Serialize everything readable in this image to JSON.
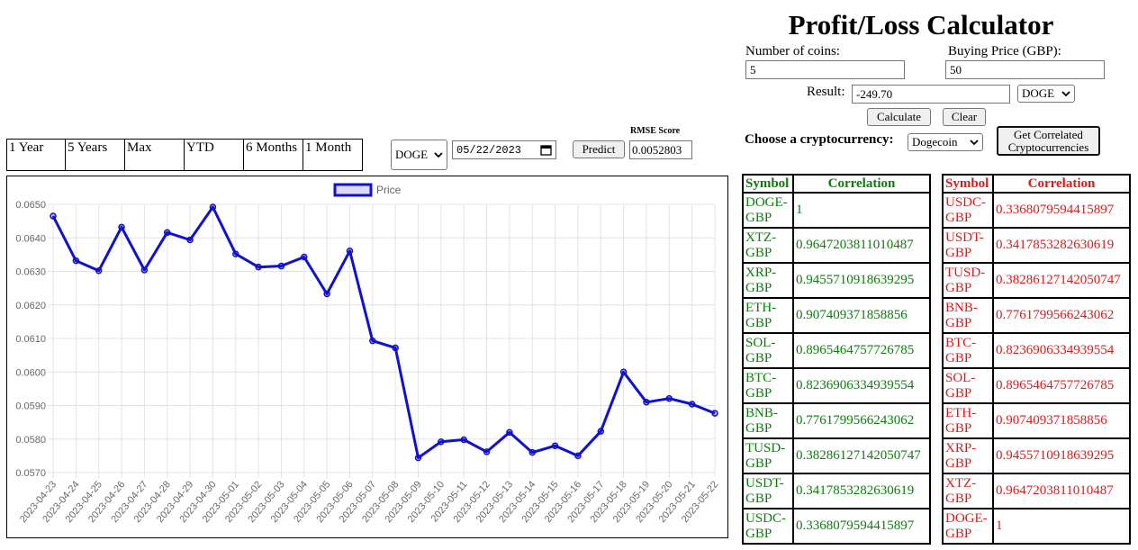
{
  "header": {
    "title": "Profit/Loss Calculator"
  },
  "calculator": {
    "coins_label": "Number of coins:",
    "coins_value": "5",
    "buy_price_label": "Buying Price (GBP):",
    "buy_price_value": "50",
    "result_label": "Result:",
    "result_value": "-249.70",
    "coin_select_value": "DOGE",
    "calculate_label": "Calculate",
    "clear_label": "Clear"
  },
  "crypto_chooser": {
    "label": "Choose a cryptocurrency:",
    "selected": "Dogecoin",
    "correlated_button": "Get Correlated Cryptocurrencies"
  },
  "range_tabs": [
    "1 Year",
    "5 Years",
    "Max",
    "YTD",
    "6 Months",
    "1 Month"
  ],
  "predict_bar": {
    "coin_select_value": "DOGE",
    "date_value": "05/22/2023",
    "predict_label": "Predict",
    "rmse_label": "RMSE Score",
    "rmse_value": "0.0052803"
  },
  "chart_data": {
    "type": "line",
    "series": [
      {
        "name": "Price",
        "color": "#1010d0",
        "values": [
          0.06465,
          0.06332,
          0.06302,
          0.06432,
          0.06304,
          0.06416,
          0.06394,
          0.06492,
          0.06352,
          0.06313,
          0.06316,
          0.06343,
          0.06233,
          0.06361,
          0.06093,
          0.06072,
          0.05744,
          0.05792,
          0.05798,
          0.05762,
          0.0582,
          0.0576,
          0.0578,
          0.0575,
          0.05823,
          0.06,
          0.0591,
          0.05921,
          0.05904,
          0.05877
        ]
      }
    ],
    "categories": [
      "2023-04-23",
      "2023-04-24",
      "2023-04-25",
      "2023-04-26",
      "2023-04-27",
      "2023-04-28",
      "2023-04-29",
      "2023-04-30",
      "2023-05-01",
      "2023-05-02",
      "2023-05-03",
      "2023-05-04",
      "2023-05-05",
      "2023-05-06",
      "2023-05-07",
      "2023-05-08",
      "2023-05-09",
      "2023-05-10",
      "2023-05-11",
      "2023-05-12",
      "2023-05-13",
      "2023-05-14",
      "2023-05-15",
      "2023-05-16",
      "2023-05-17",
      "2023-05-18",
      "2023-05-19",
      "2023-05-20",
      "2023-05-21",
      "2023-05-22"
    ],
    "yticks": [
      "0.0570",
      "0.0580",
      "0.0590",
      "0.0600",
      "0.0610",
      "0.0620",
      "0.0630",
      "0.0640",
      "0.0650"
    ],
    "ylim": [
      0.057,
      0.065
    ],
    "legend_position": "top-center",
    "grid": true
  },
  "positive_table": {
    "headers": [
      "Symbol",
      "Correlation"
    ],
    "rows": [
      [
        "DOGE-GBP",
        "1"
      ],
      [
        "XTZ-GBP",
        "0.9647203811010487"
      ],
      [
        "XRP-GBP",
        "0.9455710918639295"
      ],
      [
        "ETH-GBP",
        "0.907409371858856"
      ],
      [
        "SOL-GBP",
        "0.8965464757726785"
      ],
      [
        "BTC-GBP",
        "0.8236906334939554"
      ],
      [
        "BNB-GBP",
        "0.7761799566243062"
      ],
      [
        "TUSD-GBP",
        "0.38286127142050747"
      ],
      [
        "USDT-GBP",
        "0.3417853282630619"
      ],
      [
        "USDC-GBP",
        "0.3368079594415897"
      ]
    ]
  },
  "negative_table": {
    "headers": [
      "Symbol",
      "Correlation"
    ],
    "rows": [
      [
        "USDC-GBP",
        "0.3368079594415897"
      ],
      [
        "USDT-GBP",
        "0.3417853282630619"
      ],
      [
        "TUSD-GBP",
        "0.38286127142050747"
      ],
      [
        "BNB-GBP",
        "0.7761799566243062"
      ],
      [
        "BTC-GBP",
        "0.8236906334939554"
      ],
      [
        "SOL-GBP",
        "0.8965464757726785"
      ],
      [
        "ETH-GBP",
        "0.907409371858856"
      ],
      [
        "XRP-GBP",
        "0.9455710918639295"
      ],
      [
        "XTZ-GBP",
        "0.9647203811010487"
      ],
      [
        "DOGE-GBP",
        "1"
      ]
    ]
  },
  "icons": {
    "dropdown": "chevron-down-icon",
    "calendar": "calendar-icon"
  }
}
